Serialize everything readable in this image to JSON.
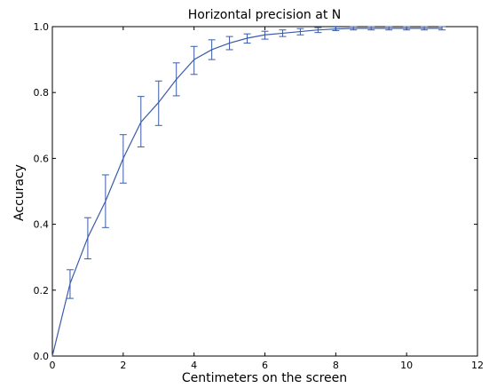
{
  "chart_data": {
    "type": "line",
    "title": "Horizontal precision at N",
    "xlabel": "Centimeters on the screen",
    "ylabel": "Accuracy",
    "xlim": [
      0,
      12
    ],
    "ylim": [
      0.0,
      1.0
    ],
    "xticks": [
      0,
      2,
      4,
      6,
      8,
      10,
      12
    ],
    "yticks": [
      0.0,
      0.2,
      0.4,
      0.6,
      0.8,
      1.0
    ],
    "xtick_labels": [
      "0",
      "2",
      "4",
      "6",
      "8",
      "10",
      "12"
    ],
    "ytick_labels": [
      "0.0",
      "0.2",
      "0.4",
      "0.6",
      "0.8",
      "1.0"
    ],
    "grid": false,
    "series_color": "#3a5ba9",
    "series": [
      {
        "x": [
          0,
          0.5,
          1.0,
          1.5,
          2.0,
          2.5,
          3.0,
          3.5,
          4.0,
          4.5,
          5.0,
          5.5,
          6.0,
          6.5,
          7.0,
          7.5,
          8.0,
          8.5,
          9.0,
          9.5,
          10.0,
          10.5,
          11.0
        ],
        "y": [
          0.0,
          0.22,
          0.36,
          0.47,
          0.6,
          0.71,
          0.77,
          0.84,
          0.9,
          0.93,
          0.95,
          0.965,
          0.975,
          0.98,
          0.985,
          0.99,
          0.993,
          0.995,
          0.995,
          0.995,
          0.995,
          0.995,
          0.995
        ],
        "err_low": [
          null,
          0.175,
          0.295,
          0.39,
          0.525,
          0.635,
          0.7,
          0.79,
          0.855,
          0.9,
          0.93,
          0.95,
          0.962,
          0.97,
          0.975,
          0.982,
          0.988,
          0.99,
          0.99,
          0.99,
          0.99,
          0.99,
          0.99
        ],
        "err_high": [
          null,
          0.262,
          0.42,
          0.55,
          0.672,
          0.788,
          0.835,
          0.89,
          0.94,
          0.96,
          0.97,
          0.978,
          0.986,
          0.99,
          0.994,
          0.997,
          0.999,
          1.0,
          1.0,
          1.0,
          1.0,
          1.0,
          1.0
        ]
      }
    ]
  }
}
